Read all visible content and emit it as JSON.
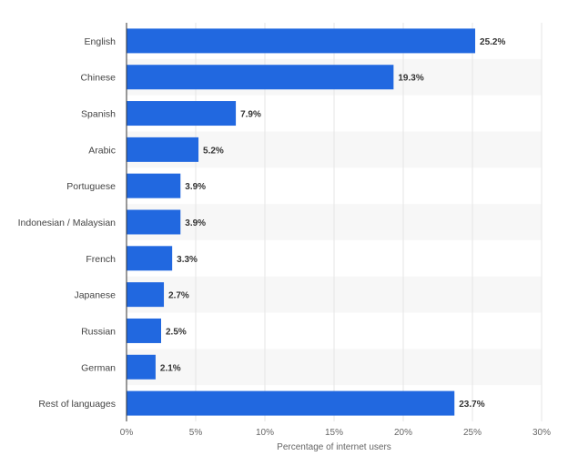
{
  "chart_data": {
    "type": "bar",
    "orientation": "horizontal",
    "categories": [
      "English",
      "Chinese",
      "Spanish",
      "Arabic",
      "Portuguese",
      "Indonesian / Malaysian",
      "French",
      "Japanese",
      "Russian",
      "German",
      "Rest of languages"
    ],
    "values": [
      25.2,
      19.3,
      7.9,
      5.2,
      3.9,
      3.9,
      3.3,
      2.7,
      2.5,
      2.1,
      23.7
    ],
    "value_labels": [
      "25.2%",
      "19.3%",
      "7.9%",
      "5.2%",
      "3.9%",
      "3.9%",
      "3.3%",
      "2.7%",
      "2.5%",
      "2.1%",
      "23.7%"
    ],
    "title": "",
    "xlabel": "Percentage of internet users",
    "ylabel": "",
    "xlim": [
      0,
      30
    ],
    "xticks": [
      0,
      5,
      10,
      15,
      20,
      25,
      30
    ],
    "xtick_labels": [
      "0%",
      "5%",
      "10%",
      "15%",
      "20%",
      "25%",
      "30%"
    ],
    "grid": "vertical",
    "bar_color": "#2168e0",
    "stripe_color": "#f7f7f7"
  }
}
